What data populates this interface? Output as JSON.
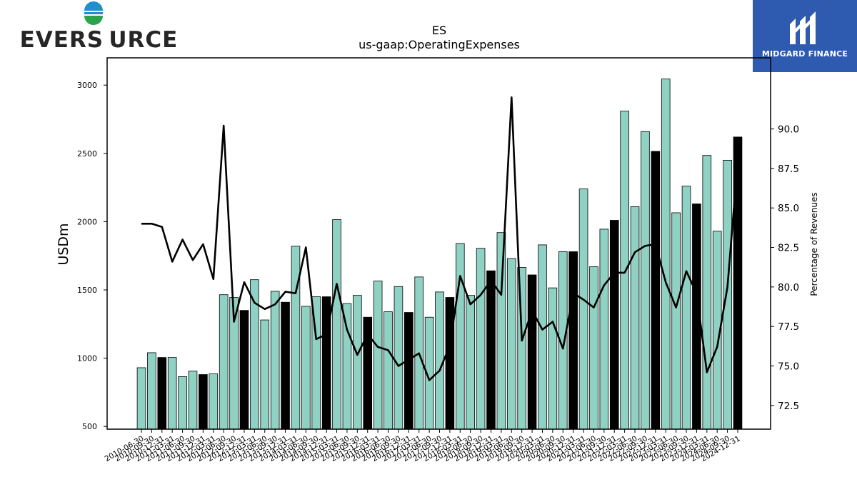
{
  "brand": {
    "left_logo_text": "EVERS URCE",
    "right_logo_text": "MIDGARD FINANCE",
    "colors": {
      "logo_dark": "#262626",
      "logo_blue": "#1f8fd0",
      "logo_green": "#2aa34a",
      "brand_box": "#2e5ab0"
    }
  },
  "chart_data": {
    "type": "bar",
    "title": "ES",
    "subtitle": "us-gaap:OperatingExpenses",
    "ylabel": "USDm",
    "y2label": "Percentage of Revenues",
    "ylim": [
      480,
      3200
    ],
    "y2lim": [
      71.0,
      94.5
    ],
    "yticks": [
      500,
      1000,
      1500,
      2000,
      2500,
      3000
    ],
    "y2ticks": [
      72.5,
      75.0,
      77.5,
      80.0,
      82.5,
      85.0,
      87.5,
      90.0
    ],
    "y2tick_labels": [
      "72.5",
      "75.0",
      "77.5",
      "80.0",
      "82.5",
      "85.0",
      "87.5",
      "90.0"
    ],
    "colors": {
      "quarter_bar": "#8fd1c3",
      "annual_bar": "#000000",
      "line": "#000000"
    },
    "categories": [
      "2010-06-30",
      "2010-09-30",
      "2010-12-31",
      "2011-03-31",
      "2011-06-30",
      "2011-09-30",
      "2011-12-31",
      "2012-03-31",
      "2012-06-30",
      "2012-09-30",
      "2012-12-31",
      "2013-03-31",
      "2013-06-30",
      "2013-09-30",
      "2013-12-31",
      "2014-03-31",
      "2014-06-30",
      "2014-09-30",
      "2014-12-31",
      "2015-03-31",
      "2015-06-30",
      "2015-09-30",
      "2015-12-31",
      "2016-03-31",
      "2016-06-30",
      "2016-09-30",
      "2016-12-31",
      "2017-03-31",
      "2017-06-30",
      "2017-09-30",
      "2017-12-31",
      "2018-03-31",
      "2018-06-30",
      "2018-09-30",
      "2018-12-31",
      "2019-03-31",
      "2019-06-30",
      "2019-09-30",
      "2019-12-31",
      "2020-03-31",
      "2020-06-30",
      "2020-09-30",
      "2020-12-31",
      "2021-03-31",
      "2021-06-30",
      "2021-09-30",
      "2021-12-31",
      "2022-03-31",
      "2022-06-30",
      "2022-09-30",
      "2022-12-31",
      "2023-03-31",
      "2023-06-30",
      "2023-09-30",
      "2023-12-31",
      "2024-03-31",
      "2024-06-30",
      "2024-09-30",
      "2024-12-31"
    ],
    "visible_xtick_labels": [
      "2010-06-30",
      "2010-09-30",
      "2010-12-31",
      "2011-03-31",
      "2011-06-30",
      "2011-09-30",
      "2011-12-31",
      "2012-03-31",
      "2012-06-30",
      "2012-09-30",
      "2012-12-31",
      "2013-03-31",
      "2013-06-30",
      "2013-09-30",
      "2013-12-31",
      "2014-03-31",
      "2014-06-30",
      "2014-09-30",
      "2014-12-31",
      "2015-03-31",
      "2015-06-30",
      "2015-09-30",
      "2015-12-31",
      "2016-03-31",
      "2016-06-30",
      "2016-09-30",
      "2016-12-31",
      "2017-03-31",
      "2017-06-30",
      "2017-09-30",
      "2017-12-31",
      "2018-03-31",
      "2018-06-30",
      "2018-09-30",
      "2018-12-31",
      "2019-03-31",
      "2019-06-30",
      "2019-09-30",
      "2019-12-31",
      "2020-03-31",
      "2020-06-30",
      "2020-09-30",
      "2020-12-31",
      "2021-03-31",
      "2021-06-30",
      "2021-09-30",
      "2021-12-31",
      "2022-03-31",
      "2022-06-30",
      "2022-09-30",
      "2022-12-31",
      "2023-03-31",
      "2023-06-30",
      "2023-09-30",
      "2023-12-31",
      "2024-03-31",
      "2024-06-30",
      "2024-09-30",
      "2024-12-31"
    ],
    "series": [
      {
        "kind": "bar",
        "axis": "left",
        "values": [
          930,
          1040,
          1005,
          1005,
          865,
          905,
          880,
          885,
          1465,
          1445,
          1350,
          1575,
          1280,
          1490,
          1410,
          1820,
          1380,
          1450,
          1450,
          2015,
          1400,
          1460,
          1300,
          1565,
          1340,
          1525,
          1335,
          1595,
          1300,
          1485,
          1445,
          1840,
          1460,
          1805,
          1640,
          1920,
          1730,
          1665,
          1610,
          1830,
          1515,
          1780,
          1780,
          2240,
          1670,
          1945,
          2010,
          2810,
          2110,
          2660,
          2515,
          3045,
          2065,
          2260,
          2130,
          2485,
          1930,
          2450,
          2620
        ],
        "annual": [
          false,
          false,
          true,
          false,
          false,
          false,
          true,
          false,
          false,
          false,
          true,
          false,
          false,
          false,
          true,
          false,
          false,
          false,
          true,
          false,
          false,
          false,
          true,
          false,
          false,
          false,
          true,
          false,
          false,
          false,
          true,
          false,
          false,
          false,
          true,
          false,
          false,
          false,
          true,
          false,
          false,
          false,
          true,
          false,
          false,
          false,
          true,
          false,
          false,
          false,
          true,
          false,
          false,
          false,
          true,
          false,
          false,
          false,
          true
        ]
      },
      {
        "kind": "line",
        "axis": "right",
        "values": [
          84.0,
          84.0,
          83.8,
          81.6,
          83.0,
          81.7,
          82.7,
          80.5,
          90.2,
          77.8,
          80.3,
          79.0,
          78.6,
          78.9,
          79.7,
          79.6,
          82.5,
          76.7,
          77.0,
          80.2,
          77.3,
          75.7,
          77.0,
          76.2,
          76.0,
          75.0,
          75.4,
          75.8,
          74.1,
          74.7,
          76.3,
          80.7,
          78.9,
          79.5,
          80.4,
          79.5,
          92.0,
          76.6,
          78.5,
          77.3,
          77.8,
          76.1,
          79.6,
          79.2,
          78.7,
          80.1,
          80.9,
          80.9,
          82.2,
          82.6,
          82.7,
          80.3,
          78.7,
          81.0,
          79.6,
          74.6,
          76.2,
          80.0,
          88.0
        ]
      }
    ]
  }
}
